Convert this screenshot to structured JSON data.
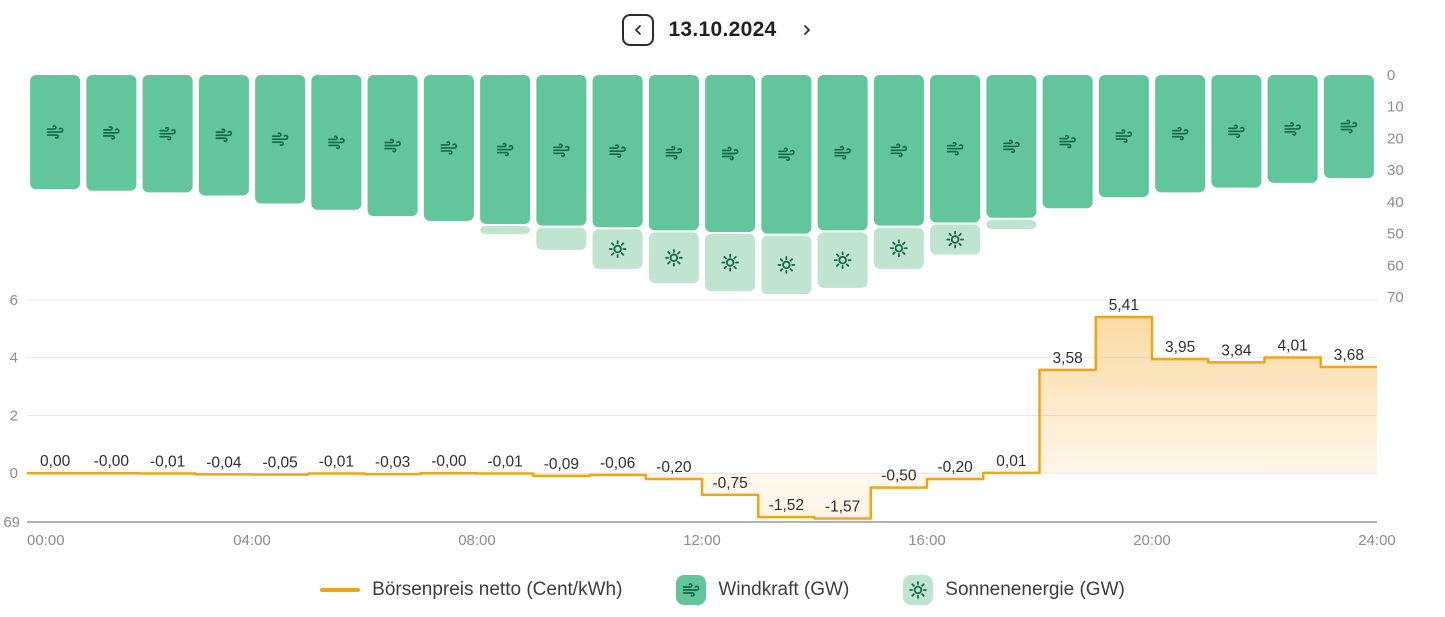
{
  "header": {
    "date": "13.10.2024"
  },
  "icons": {
    "prev": "chevron-left",
    "next": "chevron-right",
    "wind": "wind",
    "sun": "sun"
  },
  "legend": {
    "items": [
      {
        "label": "Börsenpreis netto (Cent/kWh)",
        "swatch": "orange-line"
      },
      {
        "label": "Windkraft (GW)",
        "swatch": "green-box-wind"
      },
      {
        "label": "Sonnenenergie (GW)",
        "swatch": "lightgreen-box-sun"
      }
    ]
  },
  "colors": {
    "price": "#f2a417",
    "wind_bar": "#62c59c",
    "wind_icon": "#15694a",
    "solar_bar": "#bfe5d1",
    "solar_icon": "#15694a",
    "grid": "#e7e7e7",
    "axis_line": "#9a9a9a",
    "axis_text": "#8c8c8c",
    "label_text": "#2e2e2e"
  },
  "chart_data": {
    "type": "combo",
    "date": "13.10.2024",
    "x_axis": {
      "ticks": [
        "00:00",
        "04:00",
        "08:00",
        "12:00",
        "16:00",
        "20:00",
        "24:00"
      ],
      "tick_hours": [
        0,
        4,
        8,
        12,
        16,
        20,
        24
      ]
    },
    "price_axis": {
      "ticks": [
        "6",
        "4",
        "2",
        "0"
      ],
      "tick_values": [
        6,
        4,
        2,
        0
      ],
      "bottom_label": "69",
      "range": [
        -1.69,
        6
      ]
    },
    "gw_axis": {
      "ticks": [
        "0",
        "10",
        "20",
        "30",
        "40",
        "50",
        "60",
        "70"
      ],
      "tick_values": [
        0,
        10,
        20,
        30,
        40,
        50,
        60,
        70
      ],
      "range": [
        0,
        70
      ],
      "inverted": true
    },
    "series_price": {
      "name": "Börsenpreis netto (Cent/kWh)",
      "type": "step-line",
      "values": [
        0.0,
        -0.0,
        -0.01,
        -0.04,
        -0.05,
        -0.01,
        -0.03,
        -0.0,
        -0.01,
        -0.09,
        -0.06,
        -0.2,
        -0.75,
        -1.52,
        -1.57,
        -0.5,
        -0.2,
        0.01,
        3.58,
        5.41,
        3.95,
        3.84,
        4.01,
        3.68
      ],
      "labels": [
        "0,00",
        "-0,00",
        "-0,01",
        "-0,04",
        "-0,05",
        "-0,01",
        "-0,03",
        "-0,00",
        "-0,01",
        "-0,09",
        "-0,06",
        "-0,20",
        "-0,75",
        "-1,52",
        "-1,57",
        "-0,50",
        "-0,20",
        "0,01",
        "3,58",
        "5,41",
        "3,95",
        "3,84",
        "4,01",
        "3,68"
      ]
    },
    "series_wind": {
      "name": "Windkraft (GW)",
      "type": "bar",
      "values": [
        36,
        36.5,
        37,
        38,
        40.5,
        42.5,
        44.5,
        46,
        47,
        47.5,
        48,
        49,
        49.5,
        50,
        49,
        47.5,
        46.5,
        45,
        42,
        38.5,
        37,
        35.5,
        34,
        32.5
      ]
    },
    "series_solar": {
      "name": "Sonnenenergie (GW)",
      "type": "bar",
      "values": [
        0,
        0,
        0,
        0,
        0,
        0,
        0,
        0,
        2.5,
        7,
        12.5,
        16,
        18,
        18.5,
        17.5,
        13,
        9.5,
        3,
        0,
        0,
        0,
        0,
        0,
        0
      ]
    }
  }
}
